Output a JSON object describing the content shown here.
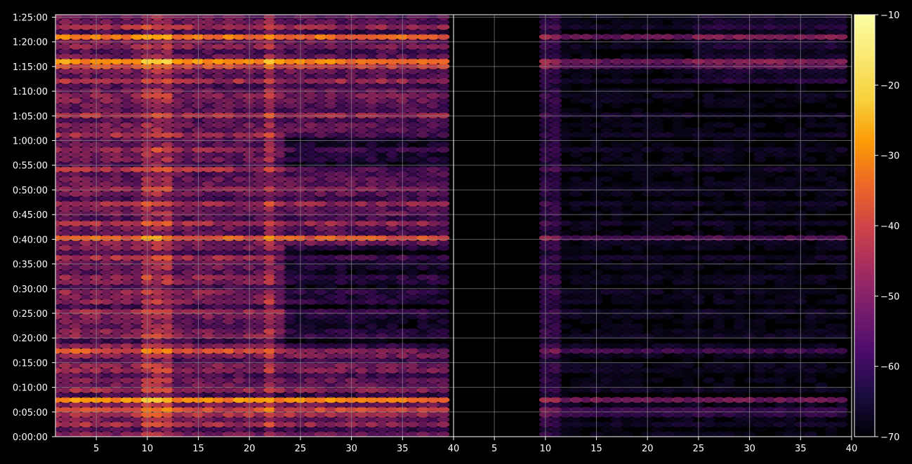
{
  "chart_data": {
    "type": "heatmap",
    "title": "",
    "xlabel": "",
    "ylabel": "",
    "panels": [
      {
        "name": "",
        "x_range": [
          1,
          40
        ],
        "x_ticks": [
          5,
          10,
          15,
          20,
          25,
          30,
          35,
          40
        ],
        "x_tick_labels": [
          "5",
          "10",
          "15",
          "20",
          "25",
          "30",
          "35",
          "40"
        ]
      },
      {
        "name": "",
        "x_range": [
          1,
          40
        ],
        "x_ticks": [
          5,
          10,
          15,
          20,
          25,
          30,
          35,
          40
        ],
        "x_tick_labels": [
          "5",
          "10",
          "15",
          "20",
          "25",
          "30",
          "35",
          "40"
        ]
      }
    ],
    "y_range_seconds": [
      0,
      5130
    ],
    "y_ticks_seconds": [
      0,
      300,
      600,
      900,
      1200,
      1500,
      1800,
      2100,
      2400,
      2700,
      3000,
      3300,
      3600,
      3900,
      4200,
      4500,
      4800,
      5100
    ],
    "y_tick_labels": [
      "0:00:00",
      "0:05:00",
      "0:10:00",
      "0:15:00",
      "0:20:00",
      "0:25:00",
      "0:30:00",
      "0:35:00",
      "0:40:00",
      "0:45:00",
      "0:50:00",
      "0:55:00",
      "1:00:00",
      "1:05:00",
      "1:10:00",
      "1:15:00",
      "1:20:00",
      "1:25:00"
    ],
    "colorbar": {
      "colormap": "inferno",
      "range": [
        -70,
        -10
      ],
      "ticks": [
        -10,
        -20,
        -30,
        -40,
        -50,
        -60,
        -70
      ],
      "tick_labels": [
        "−10",
        "−20",
        "−30",
        "−40",
        "−50",
        "−60",
        "−70"
      ]
    },
    "grid": true,
    "strong_rows_seconds": [
      440,
      4860,
      4540,
      2400,
      1040,
      290
    ],
    "strong_columns": [
      10,
      11,
      12,
      22
    ],
    "colors": {
      "background": "#000000",
      "grid": "#888888",
      "axis": "#ffffff"
    }
  }
}
